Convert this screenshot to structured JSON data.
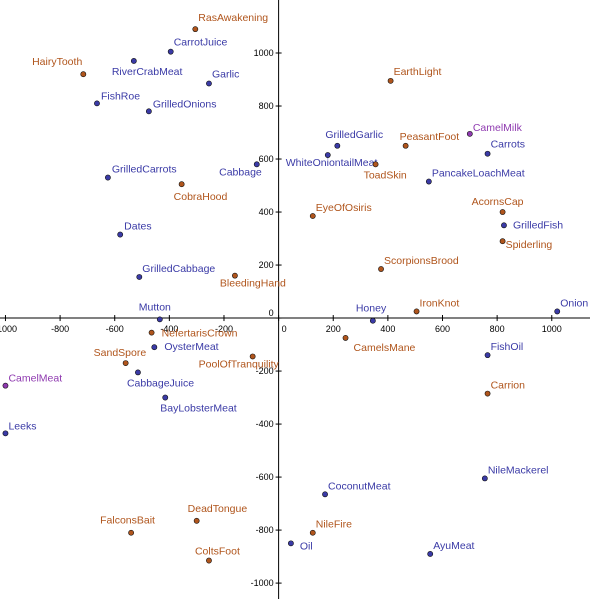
{
  "chart_data": {
    "type": "scatter",
    "title": "",
    "xlabel": "",
    "ylabel": "",
    "xlim": [
      -1020,
      1140
    ],
    "ylim": [
      -1060,
      1200
    ],
    "grid": false,
    "x_ticks": [
      -1000,
      -800,
      -600,
      -400,
      -200,
      0,
      200,
      400,
      600,
      800,
      1000
    ],
    "y_ticks": [
      -1000,
      -800,
      -600,
      -400,
      -200,
      0,
      200,
      400,
      600,
      800,
      1000
    ],
    "x_tick_labels": [
      "-1000",
      "-800",
      "-600",
      "-400",
      "-200",
      "0",
      "200",
      "400",
      "600",
      "800",
      "1000"
    ],
    "y_tick_labels": [
      "-1000",
      "-800",
      "-600",
      "-400",
      "-200",
      "0",
      "200",
      "400",
      "600",
      "800",
      "1000"
    ],
    "colors": {
      "blue": "#3a3aa6",
      "orange": "#b0551c",
      "purple": "#8f3ab0"
    },
    "points": [
      {
        "label": "RasAwakening",
        "x": -305,
        "y": 1090,
        "color": "orange"
      },
      {
        "label": "CarrotJuice",
        "x": -395,
        "y": 1005,
        "color": "blue"
      },
      {
        "label": "HairyTooth",
        "x": -715,
        "y": 920,
        "color": "orange"
      },
      {
        "label": "RiverCrabMeat",
        "x": -530,
        "y": 970,
        "color": "blue"
      },
      {
        "label": "Garlic",
        "x": -255,
        "y": 885,
        "color": "blue"
      },
      {
        "label": "EarthLight",
        "x": 410,
        "y": 895,
        "color": "orange"
      },
      {
        "label": "FishRoe",
        "x": -665,
        "y": 810,
        "color": "blue"
      },
      {
        "label": "GrilledOnions",
        "x": -475,
        "y": 780,
        "color": "blue"
      },
      {
        "label": "CamelMilk",
        "x": 700,
        "y": 695,
        "color": "purple"
      },
      {
        "label": "GrilledGarlic",
        "x": 215,
        "y": 650,
        "color": "blue"
      },
      {
        "label": "PeasantFoot",
        "x": 465,
        "y": 650,
        "color": "orange"
      },
      {
        "label": "Carrots",
        "x": 765,
        "y": 620,
        "color": "blue"
      },
      {
        "label": "WhiteOniontailMeat",
        "x": 180,
        "y": 615,
        "color": "blue"
      },
      {
        "label": "Cabbage",
        "x": -80,
        "y": 580,
        "color": "blue"
      },
      {
        "label": "ToadSkin",
        "x": 355,
        "y": 580,
        "color": "orange"
      },
      {
        "label": "GrilledCarrots",
        "x": -625,
        "y": 530,
        "color": "blue"
      },
      {
        "label": "CobraHood",
        "x": -355,
        "y": 505,
        "color": "orange"
      },
      {
        "label": "PancakeLoachMeat",
        "x": 550,
        "y": 515,
        "color": "blue"
      },
      {
        "label": "EyeOfOsiris",
        "x": 125,
        "y": 385,
        "color": "orange"
      },
      {
        "label": "AcornsCap",
        "x": 820,
        "y": 400,
        "color": "orange"
      },
      {
        "label": "GrilledFish",
        "x": 825,
        "y": 350,
        "color": "blue"
      },
      {
        "label": "Dates",
        "x": -580,
        "y": 315,
        "color": "blue"
      },
      {
        "label": "Spiderling",
        "x": 820,
        "y": 290,
        "color": "orange"
      },
      {
        "label": "ScorpionsBrood",
        "x": 375,
        "y": 185,
        "color": "orange"
      },
      {
        "label": "GrilledCabbage",
        "x": -510,
        "y": 155,
        "color": "blue"
      },
      {
        "label": "BleedingHand",
        "x": -160,
        "y": 160,
        "color": "orange"
      },
      {
        "label": "IronKnot",
        "x": 505,
        "y": 25,
        "color": "orange"
      },
      {
        "label": "Onion",
        "x": 1020,
        "y": 25,
        "color": "blue"
      },
      {
        "label": "Mutton",
        "x": -435,
        "y": -5,
        "color": "blue"
      },
      {
        "label": "Honey",
        "x": 345,
        "y": -10,
        "color": "blue"
      },
      {
        "label": "NefertarisCrown",
        "x": -465,
        "y": -55,
        "color": "orange"
      },
      {
        "label": "CamelsMane",
        "x": 245,
        "y": -75,
        "color": "orange"
      },
      {
        "label": "OysterMeat",
        "x": -455,
        "y": -110,
        "color": "blue"
      },
      {
        "label": "FishOil",
        "x": 765,
        "y": -140,
        "color": "blue"
      },
      {
        "label": "PoolOfTranquility",
        "x": -95,
        "y": -145,
        "color": "orange"
      },
      {
        "label": "SandSpore",
        "x": -560,
        "y": -170,
        "color": "orange"
      },
      {
        "label": "CamelMeat",
        "x": -1000,
        "y": -255,
        "color": "purple"
      },
      {
        "label": "CabbageJuice",
        "x": -515,
        "y": -205,
        "color": "blue"
      },
      {
        "label": "Carrion",
        "x": 765,
        "y": -285,
        "color": "orange"
      },
      {
        "label": "BayLobsterMeat",
        "x": -415,
        "y": -300,
        "color": "blue"
      },
      {
        "label": "Leeks",
        "x": -1000,
        "y": -435,
        "color": "blue"
      },
      {
        "label": "NileMackerel",
        "x": 755,
        "y": -605,
        "color": "blue"
      },
      {
        "label": "CoconutMeat",
        "x": 170,
        "y": -665,
        "color": "blue"
      },
      {
        "label": "DeadTongue",
        "x": -300,
        "y": -765,
        "color": "orange"
      },
      {
        "label": "FalconsBait",
        "x": -540,
        "y": -810,
        "color": "orange"
      },
      {
        "label": "NileFire",
        "x": 125,
        "y": -810,
        "color": "orange"
      },
      {
        "label": "Oil",
        "x": 45,
        "y": -850,
        "color": "blue"
      },
      {
        "label": "AyuMeat",
        "x": 555,
        "y": -890,
        "color": "blue"
      },
      {
        "label": "ColtsFoot",
        "x": -255,
        "y": -915,
        "color": "orange"
      }
    ]
  }
}
